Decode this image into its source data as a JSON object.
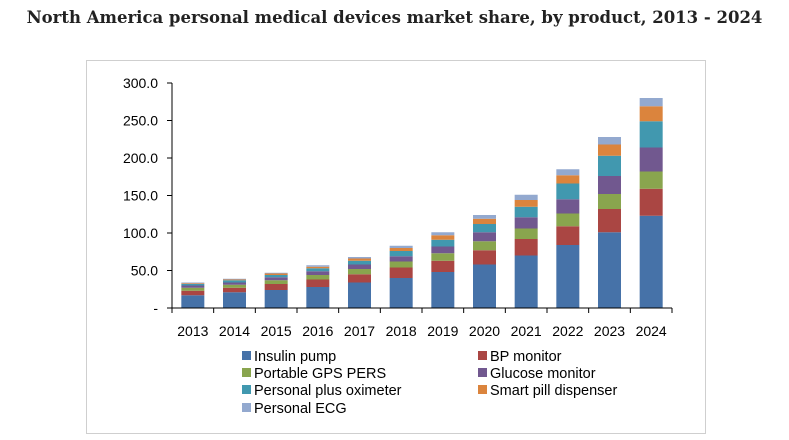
{
  "chart_data": {
    "type": "bar",
    "stacked": true,
    "title": "North America personal medical devices market share, by product, 2013 - 2024",
    "xlabel": "",
    "ylabel": "",
    "ylim": [
      0,
      300
    ],
    "yticks": [
      {
        "value": 0,
        "label": "-"
      },
      {
        "value": 50,
        "label": "50.0"
      },
      {
        "value": 100,
        "label": "100.0"
      },
      {
        "value": 150,
        "label": "150.0"
      },
      {
        "value": 200,
        "label": "200.0"
      },
      {
        "value": 250,
        "label": "250.0"
      },
      {
        "value": 300,
        "label": "300.0"
      }
    ],
    "grid": false,
    "legend": "bottom",
    "categories": [
      "2013",
      "2014",
      "2015",
      "2016",
      "2017",
      "2018",
      "2019",
      "2020",
      "2021",
      "2022",
      "2023",
      "2024"
    ],
    "series": [
      {
        "name": "Insulin pump",
        "color": "#4672a8",
        "values": [
          17,
          21,
          24,
          28,
          34,
          40,
          48,
          58,
          70,
          84,
          101,
          123
        ]
      },
      {
        "name": "BP monitor",
        "color": "#aa4643",
        "values": [
          6,
          6,
          8,
          10,
          11,
          14,
          15,
          19,
          22,
          25,
          31,
          36
        ]
      },
      {
        "name": "Portable GPS PERS",
        "color": "#89a54e",
        "values": [
          4,
          4,
          5,
          6,
          7,
          8,
          10,
          12,
          14,
          17,
          20,
          23
        ]
      },
      {
        "name": "Glucose monitor",
        "color": "#71588f",
        "values": [
          3,
          3,
          4,
          5,
          6,
          7,
          9,
          12,
          15,
          19,
          24,
          32
        ]
      },
      {
        "name": "Personal plus oximeter",
        "color": "#4198af",
        "values": [
          2,
          3,
          3,
          4,
          5,
          7,
          9,
          11,
          14,
          21,
          27,
          35
        ]
      },
      {
        "name": "Smart pill dispenser",
        "color": "#db843d",
        "values": [
          1,
          1,
          2,
          2,
          3,
          4,
          6,
          7,
          9,
          11,
          15,
          20
        ]
      },
      {
        "name": "Personal ECG",
        "color": "#93a9cf",
        "values": [
          1,
          1,
          1,
          2,
          2,
          3,
          4,
          5,
          7,
          8,
          10,
          11
        ]
      }
    ]
  }
}
